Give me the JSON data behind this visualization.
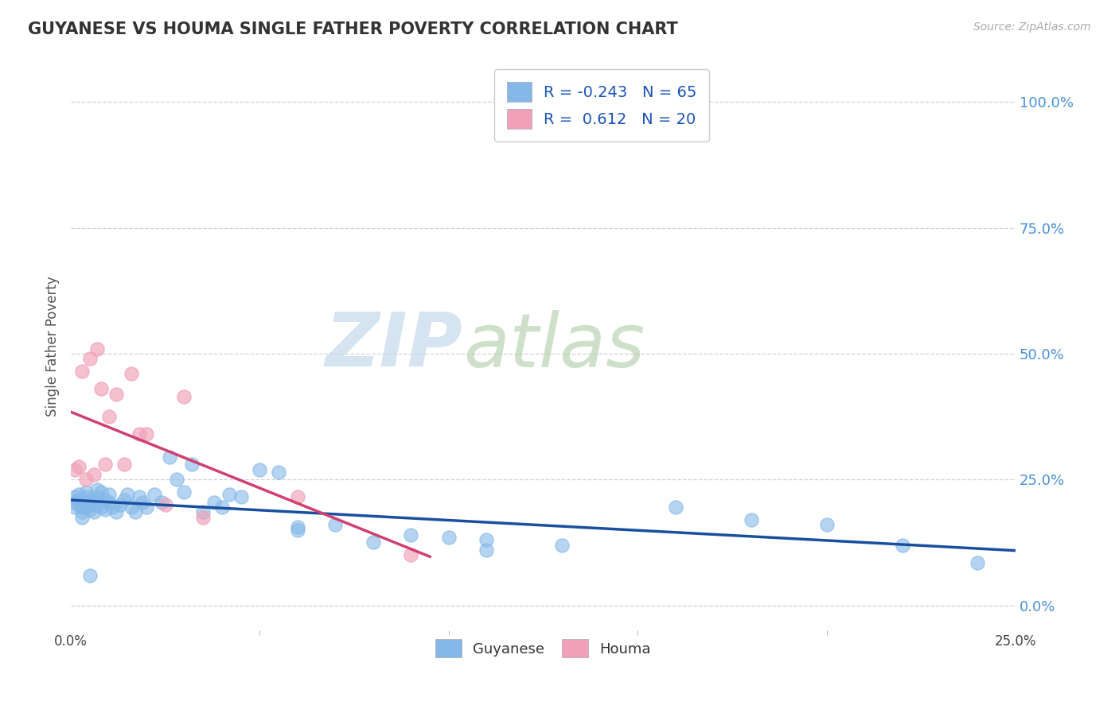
{
  "title": "GUYANESE VS HOUMA SINGLE FATHER POVERTY CORRELATION CHART",
  "source": "Source: ZipAtlas.com",
  "ylabel": "Single Father Poverty",
  "xlim": [
    0.0,
    0.25
  ],
  "ylim": [
    -0.05,
    1.08
  ],
  "ytick_vals": [
    0.0,
    0.25,
    0.5,
    0.75,
    1.0
  ],
  "r_guyanese": -0.243,
  "n_guyanese": 65,
  "r_houma": 0.612,
  "n_houma": 20,
  "guyanese_color": "#85b8e8",
  "houma_color": "#f0a0b8",
  "trend_guyanese_color": "#1a4fa0",
  "trend_houma_color": "#d04070",
  "legend_r_color": "#1a52b8",
  "background_color": "#ffffff",
  "grid_color": "#d0d0d0",
  "title_color": "#333333",
  "guyanese_x": [
    0.001,
    0.001,
    0.001,
    0.002,
    0.002,
    0.002,
    0.003,
    0.003,
    0.003,
    0.003,
    0.004,
    0.004,
    0.004,
    0.005,
    0.005,
    0.005,
    0.006,
    0.006,
    0.007,
    0.007,
    0.007,
    0.008,
    0.008,
    0.009,
    0.009,
    0.01,
    0.01,
    0.011,
    0.012,
    0.013,
    0.014,
    0.015,
    0.016,
    0.017,
    0.018,
    0.019,
    0.02,
    0.022,
    0.024,
    0.026,
    0.028,
    0.03,
    0.032,
    0.035,
    0.038,
    0.04,
    0.042,
    0.045,
    0.05,
    0.055,
    0.06,
    0.07,
    0.08,
    0.09,
    0.1,
    0.11,
    0.13,
    0.16,
    0.18,
    0.2,
    0.22,
    0.24,
    0.005,
    0.06,
    0.11
  ],
  "guyanese_y": [
    0.205,
    0.215,
    0.195,
    0.21,
    0.2,
    0.22,
    0.195,
    0.185,
    0.175,
    0.205,
    0.215,
    0.225,
    0.195,
    0.2,
    0.21,
    0.19,
    0.205,
    0.185,
    0.215,
    0.2,
    0.23,
    0.225,
    0.195,
    0.21,
    0.19,
    0.205,
    0.22,
    0.195,
    0.185,
    0.2,
    0.21,
    0.22,
    0.195,
    0.185,
    0.215,
    0.205,
    0.195,
    0.22,
    0.205,
    0.295,
    0.25,
    0.225,
    0.28,
    0.185,
    0.205,
    0.195,
    0.22,
    0.215,
    0.27,
    0.265,
    0.155,
    0.16,
    0.125,
    0.14,
    0.135,
    0.13,
    0.12,
    0.195,
    0.17,
    0.16,
    0.12,
    0.085,
    0.06,
    0.15,
    0.11
  ],
  "houma_x": [
    0.001,
    0.002,
    0.003,
    0.004,
    0.005,
    0.006,
    0.007,
    0.008,
    0.009,
    0.01,
    0.012,
    0.014,
    0.016,
    0.018,
    0.02,
    0.025,
    0.03,
    0.035,
    0.06,
    0.09
  ],
  "houma_y": [
    0.27,
    0.275,
    0.465,
    0.25,
    0.49,
    0.26,
    0.51,
    0.43,
    0.28,
    0.375,
    0.42,
    0.28,
    0.46,
    0.34,
    0.34,
    0.2,
    0.415,
    0.175,
    0.215,
    0.1
  ]
}
